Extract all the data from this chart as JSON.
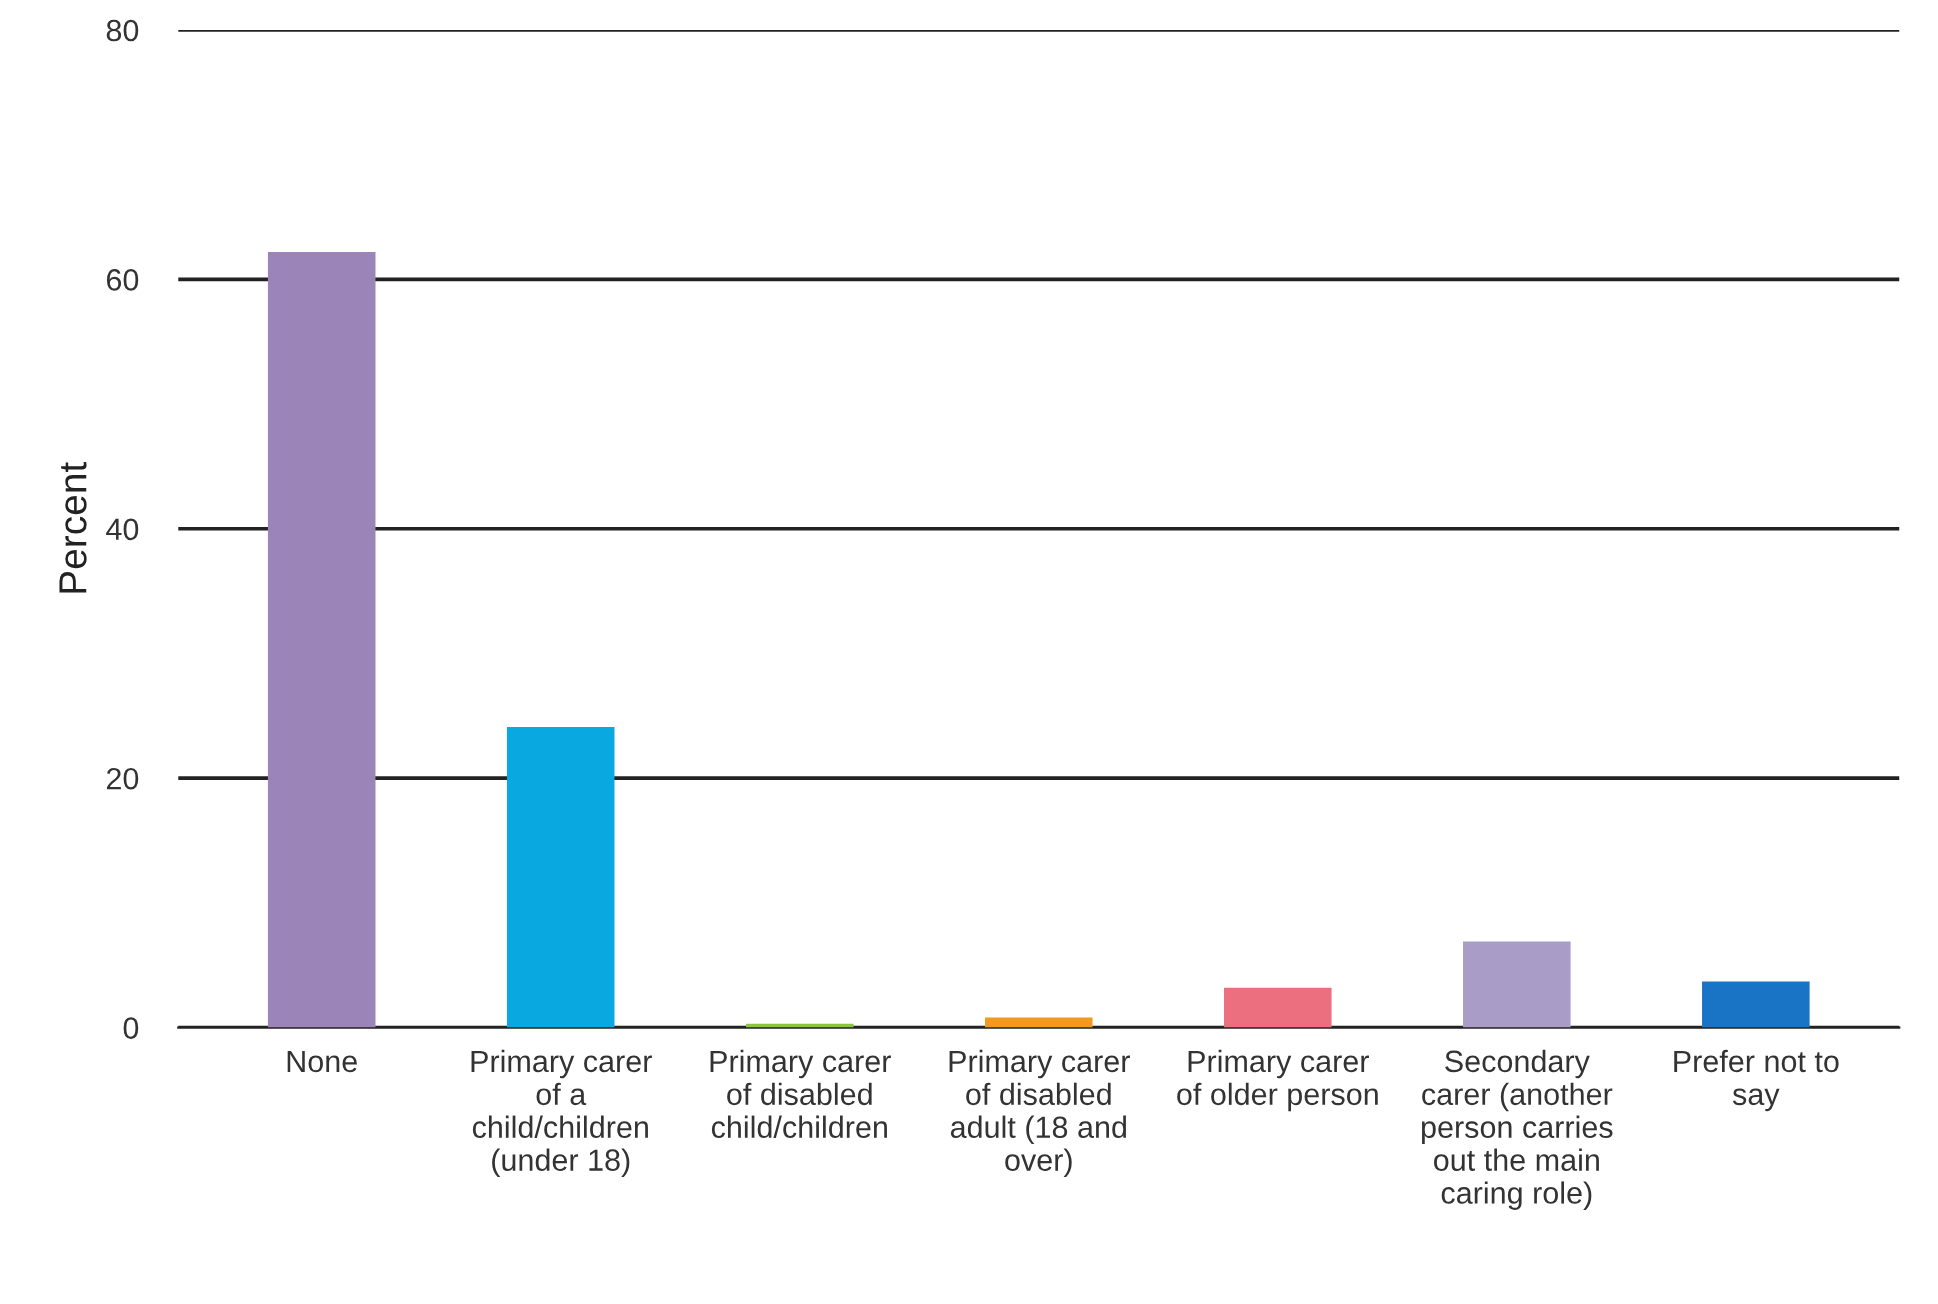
{
  "chart_data": {
    "type": "bar",
    "ylabel": "Percent",
    "categories": [
      "None",
      "Primary carer\nof a\nchild/children\n(under 18)",
      "Primary carer\nof disabled\nchild/children",
      "Primary carer\nof disabled\nadult (18 and\nover)",
      "Primary carer\nof older person",
      "Secondary\ncarer (another\nperson carries\nout the main\ncaring role)",
      "Prefer not to\nsay"
    ],
    "values": [
      62.2,
      24.1,
      0.3,
      0.8,
      3.2,
      6.9,
      3.7
    ],
    "colors": [
      "#9b84b8",
      "#0aa8e0",
      "#8cc63f",
      "#f39a1e",
      "#ec6f7f",
      "#a99dc8",
      "#1a74c6"
    ],
    "ylim": [
      0,
      80
    ],
    "yticks": [
      0,
      20,
      40,
      60,
      80
    ],
    "grid": "y"
  }
}
